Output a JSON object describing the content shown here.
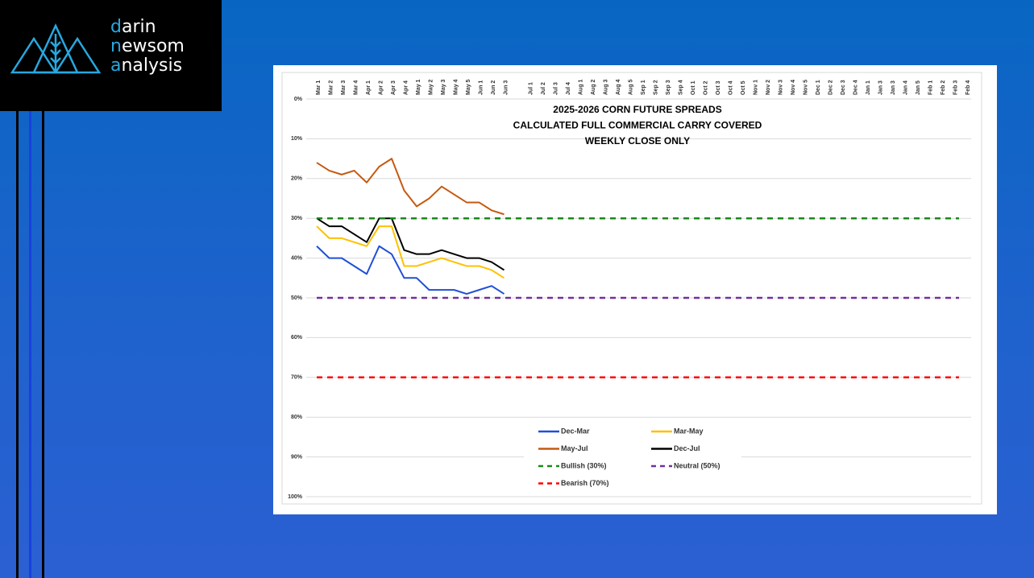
{
  "logo": {
    "lines": [
      "darin",
      "newsom",
      "analysis"
    ]
  },
  "chart_data": {
    "type": "line",
    "title": [
      "2025-2026 CORN FUTURE SPREADS",
      "CALCULATED FULL COMMERCIAL CARRY COVERED",
      "WEEKLY CLOSE ONLY"
    ],
    "categories": [
      "Mar 1",
      "Mar 2",
      "Mar 3",
      "Mar 4",
      "Apr 1",
      "Apr 2",
      "Apr 3",
      "Apr 4",
      "May 1",
      "May 2",
      "May 3",
      "May 4",
      "May 5",
      "Jun 1",
      "Jun 2",
      "Jun 3",
      null,
      "Jul 1",
      "Jul 2",
      "Jul 3",
      "Jul 4",
      "Aug 1",
      "Aug 2",
      "Aug 3",
      "Aug 4",
      "Aug 5",
      "Sep 1",
      "Sep 2",
      "Sep 3",
      "Sep 4",
      "Oct 1",
      "Oct 2",
      "Oct 3",
      "Oct 4",
      "Oct 5",
      "Nov 1",
      "Nov 2",
      "Nov 3",
      "Nov 4",
      "Nov 5",
      "Dec 1",
      "Dec 2",
      "Dec 3",
      "Dec 4",
      "Jan 1",
      "Jan 3",
      "Jan 3",
      "Jan 4",
      "Jan 5",
      "Feb 1",
      "Feb 2",
      "Feb 3",
      "Feb 4"
    ],
    "series": [
      {
        "name": "Dec-Mar",
        "color": "#1f4fd8",
        "values": [
          37,
          40,
          40,
          42,
          44,
          37,
          39,
          45,
          45,
          48,
          48,
          48,
          49,
          48,
          47,
          49,
          null,
          null,
          null,
          null,
          null,
          null,
          null,
          null,
          null,
          null,
          null,
          null,
          null,
          null,
          null,
          null,
          null,
          null,
          null,
          null,
          null,
          null,
          null,
          null,
          null,
          null,
          null,
          null,
          null,
          null,
          null,
          null,
          null,
          null,
          null,
          null,
          null
        ]
      },
      {
        "name": "Mar-May",
        "color": "#ffc000",
        "values": [
          32,
          35,
          35,
          36,
          37,
          32,
          32,
          42,
          42,
          41,
          40,
          41,
          42,
          42,
          43,
          45,
          null,
          null,
          null,
          null,
          null,
          null,
          null,
          null,
          null,
          null,
          null,
          null,
          null,
          null,
          null,
          null,
          null,
          null,
          null,
          null,
          null,
          null,
          null,
          null,
          null,
          null,
          null,
          null,
          null,
          null,
          null,
          null,
          null,
          null,
          null,
          null,
          null
        ]
      },
      {
        "name": "May-Jul",
        "color": "#c55a11",
        "values": [
          16,
          18,
          19,
          18,
          21,
          17,
          15,
          23,
          27,
          25,
          22,
          24,
          26,
          26,
          28,
          29,
          null,
          null,
          null,
          null,
          null,
          null,
          null,
          null,
          null,
          null,
          null,
          null,
          null,
          null,
          null,
          null,
          null,
          null,
          null,
          null,
          null,
          null,
          null,
          null,
          null,
          null,
          null,
          null,
          null,
          null,
          null,
          null,
          null,
          null,
          null,
          null,
          null
        ]
      },
      {
        "name": "Dec-Jul",
        "color": "#000000",
        "values": [
          30,
          32,
          32,
          34,
          36,
          30,
          30,
          38,
          39,
          39,
          38,
          39,
          40,
          40,
          41,
          43,
          null,
          null,
          null,
          null,
          null,
          null,
          null,
          null,
          null,
          null,
          null,
          null,
          null,
          null,
          null,
          null,
          null,
          null,
          null,
          null,
          null,
          null,
          null,
          null,
          null,
          null,
          null,
          null,
          null,
          null,
          null,
          null,
          null,
          null,
          null,
          null,
          null
        ]
      },
      {
        "name": "Bullish (30%)",
        "color": "#1a8a1a",
        "dashed": true,
        "value": 30
      },
      {
        "name": "Neutral (50%)",
        "color": "#7030a0",
        "dashed": true,
        "value": 50
      },
      {
        "name": "Bearish (70%)",
        "color": "#ff0000",
        "dashed": true,
        "value": 70
      }
    ],
    "ylim": [
      0,
      100
    ],
    "y_inverted": true,
    "yticks": [
      {
        "value": 0,
        "label": "0%"
      },
      {
        "value": 10,
        "label": "10%"
      },
      {
        "value": 20,
        "label": "20%"
      },
      {
        "value": 30,
        "label": "30%"
      },
      {
        "value": 40,
        "label": "40%"
      },
      {
        "value": 50,
        "label": "50%"
      },
      {
        "value": 60,
        "label": "60%"
      },
      {
        "value": 70,
        "label": "70%"
      },
      {
        "value": 80,
        "label": "80%"
      },
      {
        "value": 90,
        "label": "90%"
      },
      {
        "value": 100,
        "label": "100%"
      }
    ],
    "grid": true,
    "legend": "bottom"
  }
}
